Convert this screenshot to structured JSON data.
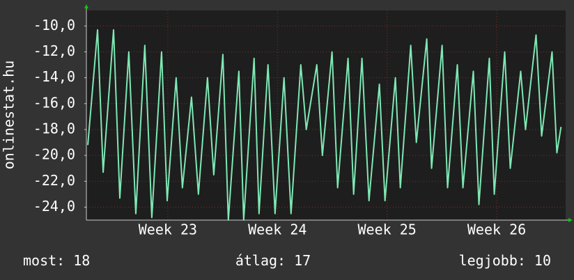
{
  "chart_data": {
    "type": "line",
    "y_label": "onlinestat.hu",
    "xlim": [
      22.257,
      26.629
    ],
    "ylim": [
      -25,
      -8.8
    ],
    "xticks": [
      {
        "value": 23,
        "label": "Week 23"
      },
      {
        "value": 24,
        "label": "Week 24"
      },
      {
        "value": 25,
        "label": "Week 25"
      },
      {
        "value": 26,
        "label": "Week 26"
      }
    ],
    "yticks": [
      {
        "value": -10,
        "label": "-10,0"
      },
      {
        "value": -12,
        "label": "-12,0"
      },
      {
        "value": -14,
        "label": "-14,0"
      },
      {
        "value": -16,
        "label": "-16,0"
      },
      {
        "value": -18,
        "label": "-18,0"
      },
      {
        "value": -20,
        "label": "-20,0"
      },
      {
        "value": -22,
        "label": "-22,0"
      },
      {
        "value": -24,
        "label": "-24,0"
      }
    ],
    "grid": true,
    "x": [
      22.27,
      22.359,
      22.41,
      22.505,
      22.562,
      22.644,
      22.708,
      22.79,
      22.854,
      22.943,
      22.994,
      23.076,
      23.133,
      23.216,
      23.279,
      23.362,
      23.419,
      23.502,
      23.552,
      23.648,
      23.692,
      23.787,
      23.832,
      23.914,
      23.978,
      24.06,
      24.124,
      24.213,
      24.263,
      24.359,
      24.41,
      24.498,
      24.549,
      24.644,
      24.695,
      24.771,
      24.835,
      24.93,
      24.981,
      25.076,
      25.121,
      25.216,
      25.267,
      25.362,
      25.406,
      25.502,
      25.552,
      25.641,
      25.692,
      25.787,
      25.838,
      25.933,
      25.978,
      26.073,
      26.124,
      26.219,
      26.263,
      26.359,
      26.41,
      26.505,
      26.549,
      26.587
    ],
    "series": [
      {
        "color": "#7ee8b4",
        "values": [
          -19.2,
          -10.3,
          -21.3,
          -10.3,
          -23.3,
          -12,
          -24.5,
          -11.5,
          -24.8,
          -12,
          -23.5,
          -14,
          -22.5,
          -15.5,
          -23,
          -14,
          -21.5,
          -12.2,
          -25,
          -13.5,
          -25,
          -12.5,
          -24.5,
          -13,
          -24.5,
          -14,
          -24.5,
          -13,
          -18,
          -13,
          -20,
          -12,
          -22.5,
          -12.5,
          -23,
          -12.5,
          -23.5,
          -14.5,
          -23.5,
          -14,
          -22.5,
          -11.5,
          -19,
          -11,
          -21,
          -11.5,
          -22.5,
          -13,
          -22.5,
          -13.5,
          -23.8,
          -12.5,
          -23,
          -12,
          -21,
          -13.5,
          -18,
          -10.7,
          -18.5,
          -12,
          -19.8,
          -17.8
        ]
      }
    ],
    "stats": [
      {
        "label": "most:",
        "value": "18"
      },
      {
        "label": "átlag:",
        "value": "17"
      },
      {
        "label": "legjobb:",
        "value": "10"
      }
    ]
  }
}
